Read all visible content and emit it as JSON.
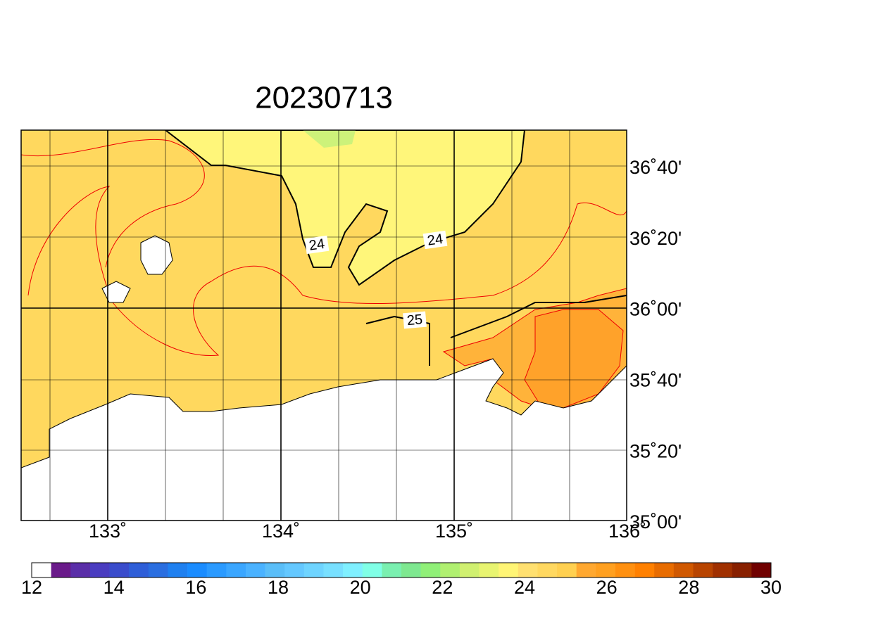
{
  "title": "20230713",
  "lat_labels": [
    "36˚40'",
    "36˚20'",
    "36˚00'",
    "35˚40'",
    "35˚20'",
    "35˚00'"
  ],
  "lon_labels": [
    "133˚",
    "134˚",
    "135˚",
    "136˚"
  ],
  "contour_labels": [
    "24",
    "24",
    "25"
  ],
  "colorbar": {
    "labels": [
      "12",
      "14",
      "16",
      "18",
      "20",
      "22",
      "24",
      "26",
      "28",
      "30"
    ],
    "colors": [
      "#ffffff",
      "#6a1a8a",
      "#5a2ea8",
      "#4a3cc0",
      "#3a4ccc",
      "#2e5ed8",
      "#2a6ee0",
      "#1f80f0",
      "#1a8cff",
      "#2a9aff",
      "#3aa6ff",
      "#4ab2ff",
      "#5abef8",
      "#64c8ff",
      "#6ed4ff",
      "#78e0ff",
      "#7ff0ff",
      "#80ffe6",
      "#7af0b0",
      "#7ee890",
      "#90f078",
      "#b0f070",
      "#d0f070",
      "#e8f470",
      "#fff575",
      "#ffe070",
      "#ffd860",
      "#ffd050",
      "#ffa830",
      "#ffa020",
      "#ff9010",
      "#ff8000",
      "#e86c00",
      "#d05800",
      "#b84400",
      "#a03000",
      "#882000",
      "#700000"
    ]
  }
}
